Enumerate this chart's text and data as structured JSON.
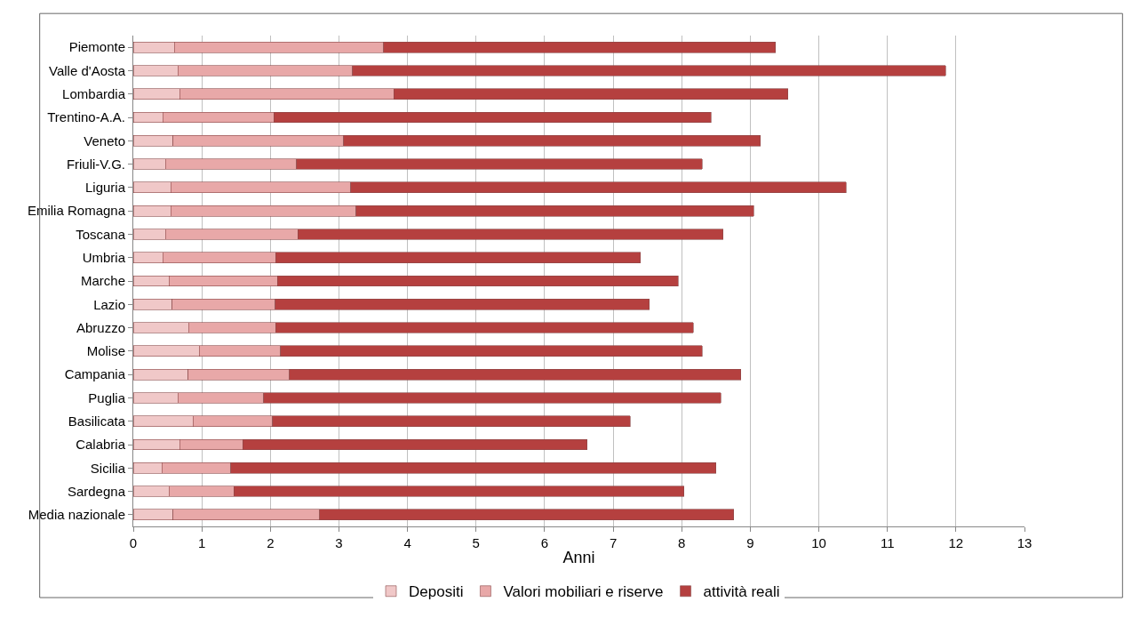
{
  "chart_data": {
    "type": "bar",
    "orientation": "horizontal",
    "stacked": true,
    "xlabel": "Anni",
    "categories": [
      "Piemonte",
      "Valle d'Aosta",
      "Lombardia",
      "Trentino-A.A.",
      "Veneto",
      "Friuli-V.G.",
      "Liguria",
      "Emilia Romagna",
      "Toscana",
      "Umbria",
      "Marche",
      "Lazio",
      "Abruzzo",
      "Molise",
      "Campania",
      "Puglia",
      "Basilicata",
      "Calabria",
      "Sicilia",
      "Sardegna",
      "Media nazionale"
    ],
    "series": [
      {
        "name": "Depositi",
        "color": "#f0c8c8",
        "values": [
          0.6,
          0.65,
          0.68,
          0.43,
          0.58,
          0.47,
          0.55,
          0.55,
          0.47,
          0.43,
          0.52,
          0.57,
          0.81,
          0.96,
          0.8,
          0.65,
          0.87,
          0.68,
          0.42,
          0.52,
          0.58
        ]
      },
      {
        "name": "Valori mobiliari e riserve",
        "color": "#e8a8a8",
        "values": [
          3.05,
          2.55,
          3.12,
          1.62,
          2.49,
          1.91,
          2.62,
          2.7,
          1.93,
          1.65,
          1.58,
          1.5,
          1.27,
          1.19,
          1.48,
          1.25,
          1.16,
          0.92,
          1.0,
          0.95,
          2.14
        ]
      },
      {
        "name": "attività reali",
        "color": "#b5403f",
        "values": [
          5.72,
          8.65,
          5.75,
          6.38,
          6.08,
          5.92,
          7.23,
          5.8,
          6.2,
          5.32,
          5.85,
          5.46,
          6.09,
          6.15,
          6.58,
          6.67,
          5.22,
          5.02,
          7.08,
          6.56,
          6.04
        ]
      }
    ],
    "xlim": [
      0,
      13
    ],
    "xticks": [
      0,
      1,
      2,
      3,
      4,
      5,
      6,
      7,
      8,
      9,
      10,
      11,
      12,
      13
    ],
    "grid": "x",
    "legend": "bottom"
  }
}
